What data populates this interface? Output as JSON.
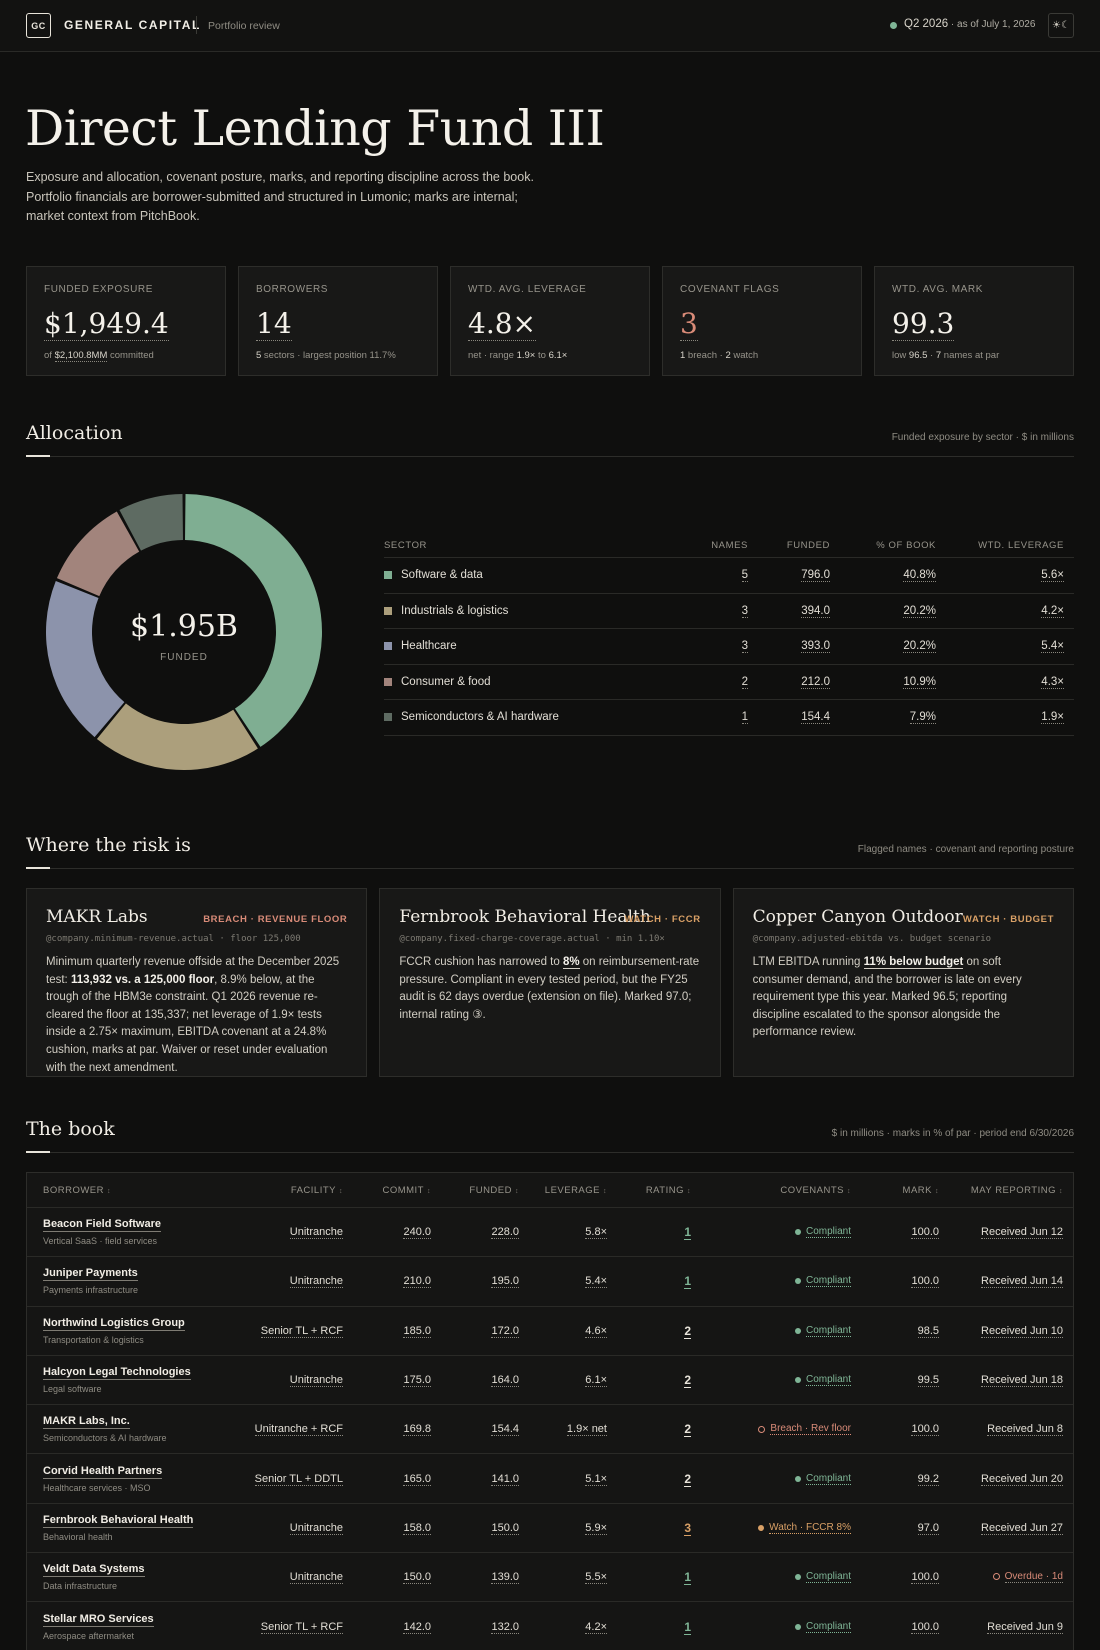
{
  "topbar": {
    "logo": "GC",
    "brand": "GENERAL CAPITAL",
    "subtitle": "Portfolio review",
    "period": "Q2 2026",
    "as_of": " · as of July 1, 2026",
    "theme_icons": "☀☾"
  },
  "header": {
    "title": "Direct Lending Fund III",
    "intro_lines": [
      "Exposure and allocation, covenant posture, marks, and reporting discipline across the book.",
      "Portfolio financials are borrower-submitted and structured in Lumonic; marks are internal;",
      "market context from PitchBook."
    ]
  },
  "kpis": [
    {
      "label": "FUNDED EXPOSURE",
      "value": "$1,949.4",
      "sub_pre": "of ",
      "sub_b1": "$2,100.8MM",
      "sub_mid": " committed",
      "sub_b2": "",
      "sub_post": ""
    },
    {
      "label": "BORROWERS",
      "value": "14",
      "sub_pre": "",
      "sub_b1": "5",
      "sub_mid": " sectors · largest position 11.7%",
      "sub_b2": "",
      "sub_post": ""
    },
    {
      "label": "WTD. AVG. LEVERAGE",
      "value": "4.8×",
      "sub_pre": "net · range ",
      "sub_b1": "1.9×",
      "sub_mid": " to ",
      "sub_b2": "6.1×",
      "sub_post": ""
    },
    {
      "label": "COVENANT FLAGS",
      "value": "3",
      "sub_pre": "",
      "sub_b1": "1",
      "sub_mid": " breach · ",
      "sub_b2": "2",
      "sub_post": " watch"
    },
    {
      "label": "WTD. AVG. MARK",
      "value": "99.3",
      "sub_pre": "low ",
      "sub_b1": "96.5",
      "sub_mid": " · ",
      "sub_b2": "7",
      "sub_post": " names at par"
    }
  ],
  "allocation": {
    "title": "Allocation",
    "meta": "Funded exposure by sector · $ in millions",
    "center_value": "$1.95B",
    "center_label": "FUNDED",
    "headers": {
      "sector": "SECTOR",
      "names": "NAMES",
      "funded": "FUNDED",
      "pct": "% OF BOOK",
      "lev": "WTD. LEVERAGE"
    },
    "rows": [
      {
        "sector": "Software & data",
        "names": "5",
        "funded": "796.0",
        "pct": "40.8%",
        "lev": "5.6×",
        "color": "#7fae92"
      },
      {
        "sector": "Industrials & logistics",
        "names": "3",
        "funded": "394.0",
        "pct": "20.2%",
        "lev": "4.2×",
        "color": "#ac9f7c"
      },
      {
        "sector": "Healthcare",
        "names": "3",
        "funded": "393.0",
        "pct": "20.2%",
        "lev": "5.4×",
        "color": "#8c93ab"
      },
      {
        "sector": "Consumer & food",
        "names": "2",
        "funded": "212.0",
        "pct": "10.9%",
        "lev": "4.3×",
        "color": "#a2847c"
      },
      {
        "sector": "Semiconductors & AI hardware",
        "names": "1",
        "funded": "154.4",
        "pct": "7.9%",
        "lev": "1.9×",
        "color": "#5e6b62"
      }
    ]
  },
  "chart_data": {
    "type": "pie",
    "categories": [
      "Software & data",
      "Industrials & logistics",
      "Healthcare",
      "Consumer & food",
      "Semiconductors & AI hardware"
    ],
    "values": [
      796.0,
      394.0,
      393.0,
      212.0,
      154.4
    ],
    "title": "",
    "center_label": "$1.95B FUNDED",
    "colors": [
      "#7fae92",
      "#ac9f7c",
      "#8c93ab",
      "#a2847c",
      "#5e6b62"
    ]
  },
  "risk": {
    "title": "Where the risk is",
    "meta": "Flagged names · covenant and reporting posture",
    "cards": [
      {
        "name": "MAKR Labs",
        "tag": "BREACH · REVENUE FLOOR",
        "tag_kind": "breach",
        "formula": "@company.minimum-revenue.actual · floor 125,000",
        "body": [
          {
            "t": "Minimum quarterly revenue offside at the December 2025 test: "
          },
          {
            "t": "113,932 vs. a 125,000 floor",
            "b": true
          },
          {
            "t": ", 8.9% below, at the trough of the HBM3e constraint. Q1 2026 revenue re-cleared the floor at 135,337; net leverage of 1.9× tests inside a 2.75× maximum, EBITDA covenant at a 24.8% cushion, marks at par. Waiver or reset under evaluation with the next amendment."
          }
        ]
      },
      {
        "name": "Fernbrook Behavioral Health",
        "tag": "WATCH · FCCR",
        "tag_kind": "watch",
        "formula": "@company.fixed-charge-coverage.actual · min 1.10×",
        "body": [
          {
            "t": "FCCR cushion has narrowed to "
          },
          {
            "t": "8%",
            "b": true
          },
          {
            "t": " on reimbursement-rate pressure. Compliant in every tested period, but the FY25 audit is 62 days overdue (extension on file). Marked 97.0; internal rating ③."
          }
        ]
      },
      {
        "name": "Copper Canyon Outdoor",
        "tag": "WATCH · BUDGET",
        "tag_kind": "watch",
        "formula": "@company.adjusted-ebitda vs. budget scenario",
        "body": [
          {
            "t": "LTM EBITDA running "
          },
          {
            "t": "11% below budget",
            "b": true
          },
          {
            "t": " on soft consumer demand, and the borrower is late on every requirement type this year. Marked 96.5; reporting discipline escalated to the sponsor alongside the performance review."
          }
        ]
      }
    ]
  },
  "book": {
    "title": "The book",
    "meta": "$ in millions · marks in % of par · period end 6/30/2026",
    "headers": {
      "borrower": "BORROWER",
      "facility": "FACILITY",
      "commit": "COMMIT",
      "funded": "FUNDED",
      "leverage": "LEVERAGE",
      "rating": "RATING",
      "covenants": "COVENANTS",
      "mark": "MARK",
      "reporting": "MAY REPORTING"
    },
    "sort_glyph": "↕",
    "rows": [
      {
        "name": "Beacon Field Software",
        "sub": "Vertical SaaS · field services",
        "facility": "Unitranche",
        "commit": "240.0",
        "funded": "228.0",
        "leverage": "5.8×",
        "rating": "1",
        "cov": "Compliant",
        "cov_kind": "ok",
        "mark": "100.0",
        "rep": "Received Jun 12",
        "rep_kind": "ok"
      },
      {
        "name": "Juniper Payments",
        "sub": "Payments infrastructure",
        "facility": "Unitranche",
        "commit": "210.0",
        "funded": "195.0",
        "leverage": "5.4×",
        "rating": "1",
        "cov": "Compliant",
        "cov_kind": "ok",
        "mark": "100.0",
        "rep": "Received Jun 14",
        "rep_kind": "ok"
      },
      {
        "name": "Northwind Logistics Group",
        "sub": "Transportation & logistics",
        "facility": "Senior TL + RCF",
        "commit": "185.0",
        "funded": "172.0",
        "leverage": "4.6×",
        "rating": "2",
        "cov": "Compliant",
        "cov_kind": "ok",
        "mark": "98.5",
        "rep": "Received Jun 10",
        "rep_kind": "ok"
      },
      {
        "name": "Halcyon Legal Technologies",
        "sub": "Legal software",
        "facility": "Unitranche",
        "commit": "175.0",
        "funded": "164.0",
        "leverage": "6.1×",
        "rating": "2",
        "cov": "Compliant",
        "cov_kind": "ok",
        "mark": "99.5",
        "rep": "Received Jun 18",
        "rep_kind": "ok"
      },
      {
        "name": "MAKR Labs, Inc.",
        "sub": "Semiconductors & AI hardware",
        "facility": "Unitranche + RCF",
        "commit": "169.8",
        "funded": "154.4",
        "leverage": "1.9× net",
        "rating": "2",
        "cov": "Breach · Rev floor",
        "cov_kind": "breach",
        "mark": "100.0",
        "rep": "Received Jun 8",
        "rep_kind": "ok"
      },
      {
        "name": "Corvid Health Partners",
        "sub": "Healthcare services · MSO",
        "facility": "Senior TL + DDTL",
        "commit": "165.0",
        "funded": "141.0",
        "leverage": "5.1×",
        "rating": "2",
        "cov": "Compliant",
        "cov_kind": "ok",
        "mark": "99.2",
        "rep": "Received Jun 20",
        "rep_kind": "ok"
      },
      {
        "name": "Fernbrook Behavioral Health",
        "sub": "Behavioral health",
        "facility": "Unitranche",
        "commit": "158.0",
        "funded": "150.0",
        "leverage": "5.9×",
        "rating": "3",
        "cov": "Watch · FCCR 8%",
        "cov_kind": "watch",
        "mark": "97.0",
        "rep": "Received Jun 27",
        "rep_kind": "ok"
      },
      {
        "name": "Veldt Data Systems",
        "sub": "Data infrastructure",
        "facility": "Unitranche",
        "commit": "150.0",
        "funded": "139.0",
        "leverage": "5.5×",
        "rating": "1",
        "cov": "Compliant",
        "cov_kind": "ok",
        "mark": "100.0",
        "rep": "Overdue · 1d",
        "rep_kind": "late"
      },
      {
        "name": "Stellar MRO Services",
        "sub": "Aerospace aftermarket",
        "facility": "Senior TL + RCF",
        "commit": "142.0",
        "funded": "132.0",
        "leverage": "4.2×",
        "rating": "1",
        "cov": "Compliant",
        "cov_kind": "ok",
        "mark": "100.0",
        "rep": "Received Jun 9",
        "rep_kind": "ok"
      }
    ]
  }
}
